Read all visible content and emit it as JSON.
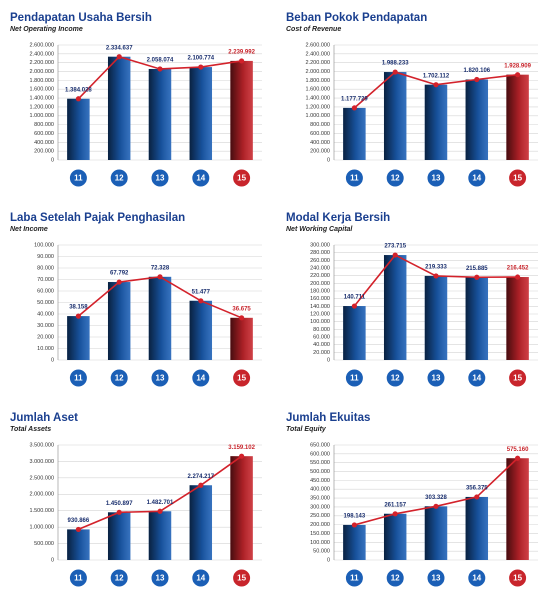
{
  "chart_data": [
    {
      "type": "bar",
      "title": "Pendapatan Usaha Bersih",
      "subtitle": "Net Operating Income",
      "categories": [
        "11",
        "12",
        "13",
        "14",
        "15"
      ],
      "values": [
        1384028,
        2334637,
        2058074,
        2100774,
        2239992
      ],
      "value_labels": [
        "1.384.028",
        "2.334.637",
        "2.058.074",
        "2.100.774",
        "2.239.992"
      ],
      "colors": [
        "#1b5fb6",
        "#1b5fb6",
        "#1b5fb6",
        "#1b5fb6",
        "#c8252c"
      ],
      "line_color": "#d3222b",
      "ylim": [
        0,
        2600000
      ],
      "yticks": [
        0,
        {
          "value": 200000,
          "label": "200.000"
        },
        {
          "value": 400000,
          "label": "400.000"
        },
        {
          "value": 600000,
          "label": "600.000"
        },
        {
          "value": 800000,
          "label": "800.000"
        },
        {
          "value": 1000000,
          "label": "1.000.000"
        },
        {
          "value": 1200000,
          "label": "1.200.000"
        },
        {
          "value": 1400000,
          "label": "1.400.000"
        },
        {
          "value": 1600000,
          "label": "1.600.000"
        },
        {
          "value": 1800000,
          "label": "1.800.000"
        },
        {
          "value": 2000000,
          "label": "2.000.000"
        },
        {
          "value": 2200000,
          "label": "2.200.000"
        },
        {
          "value": 2400000,
          "label": "2.400.000"
        },
        {
          "value": 2600000,
          "label": "2.600.000"
        }
      ],
      "grid": true
    },
    {
      "type": "bar",
      "title": "Beban Pokok Pendapatan",
      "subtitle": "Cost of Revenue",
      "categories": [
        "11",
        "12",
        "13",
        "14",
        "15"
      ],
      "values": [
        1177729,
        1988233,
        1702112,
        1820106,
        1928909
      ],
      "value_labels": [
        "1.177.729",
        "1.988.233",
        "1.702.112",
        "1.820.106",
        "1.928.909"
      ],
      "colors": [
        "#1b5fb6",
        "#1b5fb6",
        "#1b5fb6",
        "#1b5fb6",
        "#c8252c"
      ],
      "line_color": "#d3222b",
      "ylim": [
        0,
        2600000
      ],
      "yticks": [
        0,
        {
          "value": 200000,
          "label": "200.000"
        },
        {
          "value": 400000,
          "label": "400.000"
        },
        {
          "value": 600000,
          "label": "600.000"
        },
        {
          "value": 800000,
          "label": "800.000"
        },
        {
          "value": 1000000,
          "label": "1.000.000"
        },
        {
          "value": 1200000,
          "label": "1.200.000"
        },
        {
          "value": 1400000,
          "label": "1.400.000"
        },
        {
          "value": 1600000,
          "label": "1.600.000"
        },
        {
          "value": 1800000,
          "label": "1.800.000"
        },
        {
          "value": 2000000,
          "label": "2.000.000"
        },
        {
          "value": 2200000,
          "label": "2.200.000"
        },
        {
          "value": 2400000,
          "label": "2.400.000"
        },
        {
          "value": 2600000,
          "label": "2.600.000"
        }
      ],
      "grid": true
    },
    {
      "type": "bar",
      "title": "Laba Setelah Pajak Penghasilan",
      "subtitle": "Net Income",
      "categories": [
        "11",
        "12",
        "13",
        "14",
        "15"
      ],
      "values": [
        38158,
        67792,
        72328,
        51477,
        36675
      ],
      "value_labels": [
        "38.158",
        "67.792",
        "72.328",
        "51.477",
        "36.675"
      ],
      "colors": [
        "#1b5fb6",
        "#1b5fb6",
        "#1b5fb6",
        "#1b5fb6",
        "#c8252c"
      ],
      "line_color": "#d3222b",
      "ylim": [
        0,
        100000
      ],
      "yticks": [
        0,
        {
          "value": 10000,
          "label": "10.000"
        },
        {
          "value": 20000,
          "label": "20.000"
        },
        {
          "value": 30000,
          "label": "30.000"
        },
        {
          "value": 40000,
          "label": "40.000"
        },
        {
          "value": 50000,
          "label": "50.000"
        },
        {
          "value": 60000,
          "label": "60.000"
        },
        {
          "value": 70000,
          "label": "70.000"
        },
        {
          "value": 80000,
          "label": "80.000"
        },
        {
          "value": 90000,
          "label": "90.000"
        },
        {
          "value": 100000,
          "label": "100.000"
        }
      ],
      "grid": true
    },
    {
      "type": "bar",
      "title": "Modal Kerja Bersih",
      "subtitle": "Net Working Capital",
      "categories": [
        "11",
        "12",
        "13",
        "14",
        "15"
      ],
      "values": [
        140711,
        273715,
        219333,
        215885,
        216452
      ],
      "value_labels": [
        "140.711",
        "273.715",
        "219.333",
        "215.885",
        "216.452"
      ],
      "colors": [
        "#1b5fb6",
        "#1b5fb6",
        "#1b5fb6",
        "#1b5fb6",
        "#c8252c"
      ],
      "line_color": "#d3222b",
      "ylim": [
        0,
        300000
      ],
      "yticks": [
        0,
        {
          "value": 20000,
          "label": "20.000"
        },
        {
          "value": 40000,
          "label": "40.000"
        },
        {
          "value": 60000,
          "label": "60.000"
        },
        {
          "value": 80000,
          "label": "80.000"
        },
        {
          "value": 100000,
          "label": "100.000"
        },
        {
          "value": 120000,
          "label": "120.000"
        },
        {
          "value": 140000,
          "label": "140.000"
        },
        {
          "value": 160000,
          "label": "160.000"
        },
        {
          "value": 180000,
          "label": "180.000"
        },
        {
          "value": 200000,
          "label": "200.000"
        },
        {
          "value": 220000,
          "label": "220.000"
        },
        {
          "value": 240000,
          "label": "240.000"
        },
        {
          "value": 260000,
          "label": "260.000"
        },
        {
          "value": 280000,
          "label": "280.000"
        },
        {
          "value": 300000,
          "label": "300.000"
        }
      ],
      "grid": true
    },
    {
      "type": "bar",
      "title": "Jumlah Aset",
      "subtitle": "Total Assets",
      "categories": [
        "11",
        "12",
        "13",
        "14",
        "15"
      ],
      "values": [
        930866,
        1450897,
        1482701,
        2274217,
        3159102
      ],
      "value_labels": [
        "930.866",
        "1.450.897",
        "1.482.701",
        "2.274.217",
        "3.159.102"
      ],
      "colors": [
        "#1b5fb6",
        "#1b5fb6",
        "#1b5fb6",
        "#1b5fb6",
        "#c8252c"
      ],
      "line_color": "#d3222b",
      "ylim": [
        0,
        3500000
      ],
      "yticks": [
        0,
        {
          "value": 500000,
          "label": "500.000"
        },
        {
          "value": 1000000,
          "label": "1.000.000"
        },
        {
          "value": 1500000,
          "label": "1.500.000"
        },
        {
          "value": 2000000,
          "label": "2.000.000"
        },
        {
          "value": 2500000,
          "label": "2.500.000"
        },
        {
          "value": 3000000,
          "label": "3.000.000"
        },
        {
          "value": 3500000,
          "label": "3.500.000"
        }
      ],
      "grid": true
    },
    {
      "type": "bar",
      "title": "Jumlah Ekuitas",
      "subtitle": "Total Equity",
      "categories": [
        "11",
        "12",
        "13",
        "14",
        "15"
      ],
      "values": [
        198143,
        261157,
        303328,
        356375,
        575160
      ],
      "value_labels": [
        "198.143",
        "261.157",
        "303.328",
        "356.375",
        "575.160"
      ],
      "colors": [
        "#1b5fb6",
        "#1b5fb6",
        "#1b5fb6",
        "#1b5fb6",
        "#c8252c"
      ],
      "line_color": "#d3222b",
      "ylim": [
        0,
        650000
      ],
      "yticks": [
        0,
        {
          "value": 50000,
          "label": "50.000"
        },
        {
          "value": 100000,
          "label": "100.000"
        },
        {
          "value": 150000,
          "label": "150.000"
        },
        {
          "value": 200000,
          "label": "200.000"
        },
        {
          "value": 250000,
          "label": "250.000"
        },
        {
          "value": 300000,
          "label": "300.000"
        },
        {
          "value": 350000,
          "label": "350.000"
        },
        {
          "value": 400000,
          "label": "400.000"
        },
        {
          "value": 450000,
          "label": "450.000"
        },
        {
          "value": 500000,
          "label": "500.000"
        },
        {
          "value": 550000,
          "label": "550.000"
        },
        {
          "value": 600000,
          "label": "600.000"
        },
        {
          "value": 650000,
          "label": "650.000"
        }
      ],
      "grid": true
    }
  ]
}
